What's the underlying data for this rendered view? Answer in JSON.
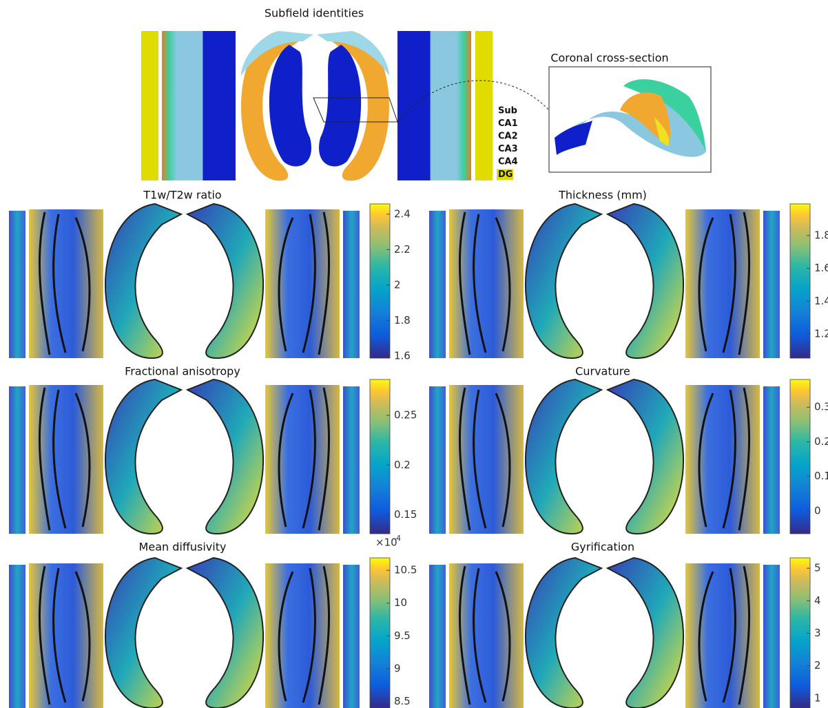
{
  "top": {
    "title": "Subfield identities",
    "inset_title": "Coronal cross-section",
    "legend": [
      {
        "label": "Sub",
        "color": "#1a2fa8"
      },
      {
        "label": "CA1",
        "color": "#7fd3e0"
      },
      {
        "label": "CA2",
        "color": "#1a9e57"
      },
      {
        "label": "CA3",
        "color": "#f0a830"
      },
      {
        "label": "CA4",
        "color": "#e03020"
      },
      {
        "label": "DG",
        "color": "#111111"
      }
    ]
  },
  "panels": [
    {
      "title": "T1w/T2w ratio",
      "clim": [
        1.588,
        2.458
      ],
      "ticks": [
        1.6,
        1.8,
        2,
        2.2,
        2.4
      ]
    },
    {
      "title": "Thickness (mm)",
      "clim": [
        1.053,
        1.993
      ],
      "ticks": [
        1.2,
        1.4,
        1.6,
        1.8
      ]
    },
    {
      "title": "Fractional anisotropy",
      "clim": [
        0.131,
        0.286
      ],
      "ticks": [
        0.15,
        0.2,
        0.25
      ]
    },
    {
      "title": "Curvature",
      "clim": [
        -0.066,
        0.38
      ],
      "ticks": [
        0,
        0.1,
        0.2,
        0.3
      ]
    },
    {
      "title": "Mean diffusivity",
      "clim": [
        8.4,
        10.69
      ],
      "ticks": [
        8.5,
        9,
        9.5,
        10,
        10.5
      ],
      "scale_base": "×10",
      "scale_exponent": "-4"
    },
    {
      "title": "Gyrification",
      "clim": [
        0.7,
        5.32
      ],
      "ticks": [
        1,
        2,
        3,
        4,
        5
      ]
    }
  ]
}
